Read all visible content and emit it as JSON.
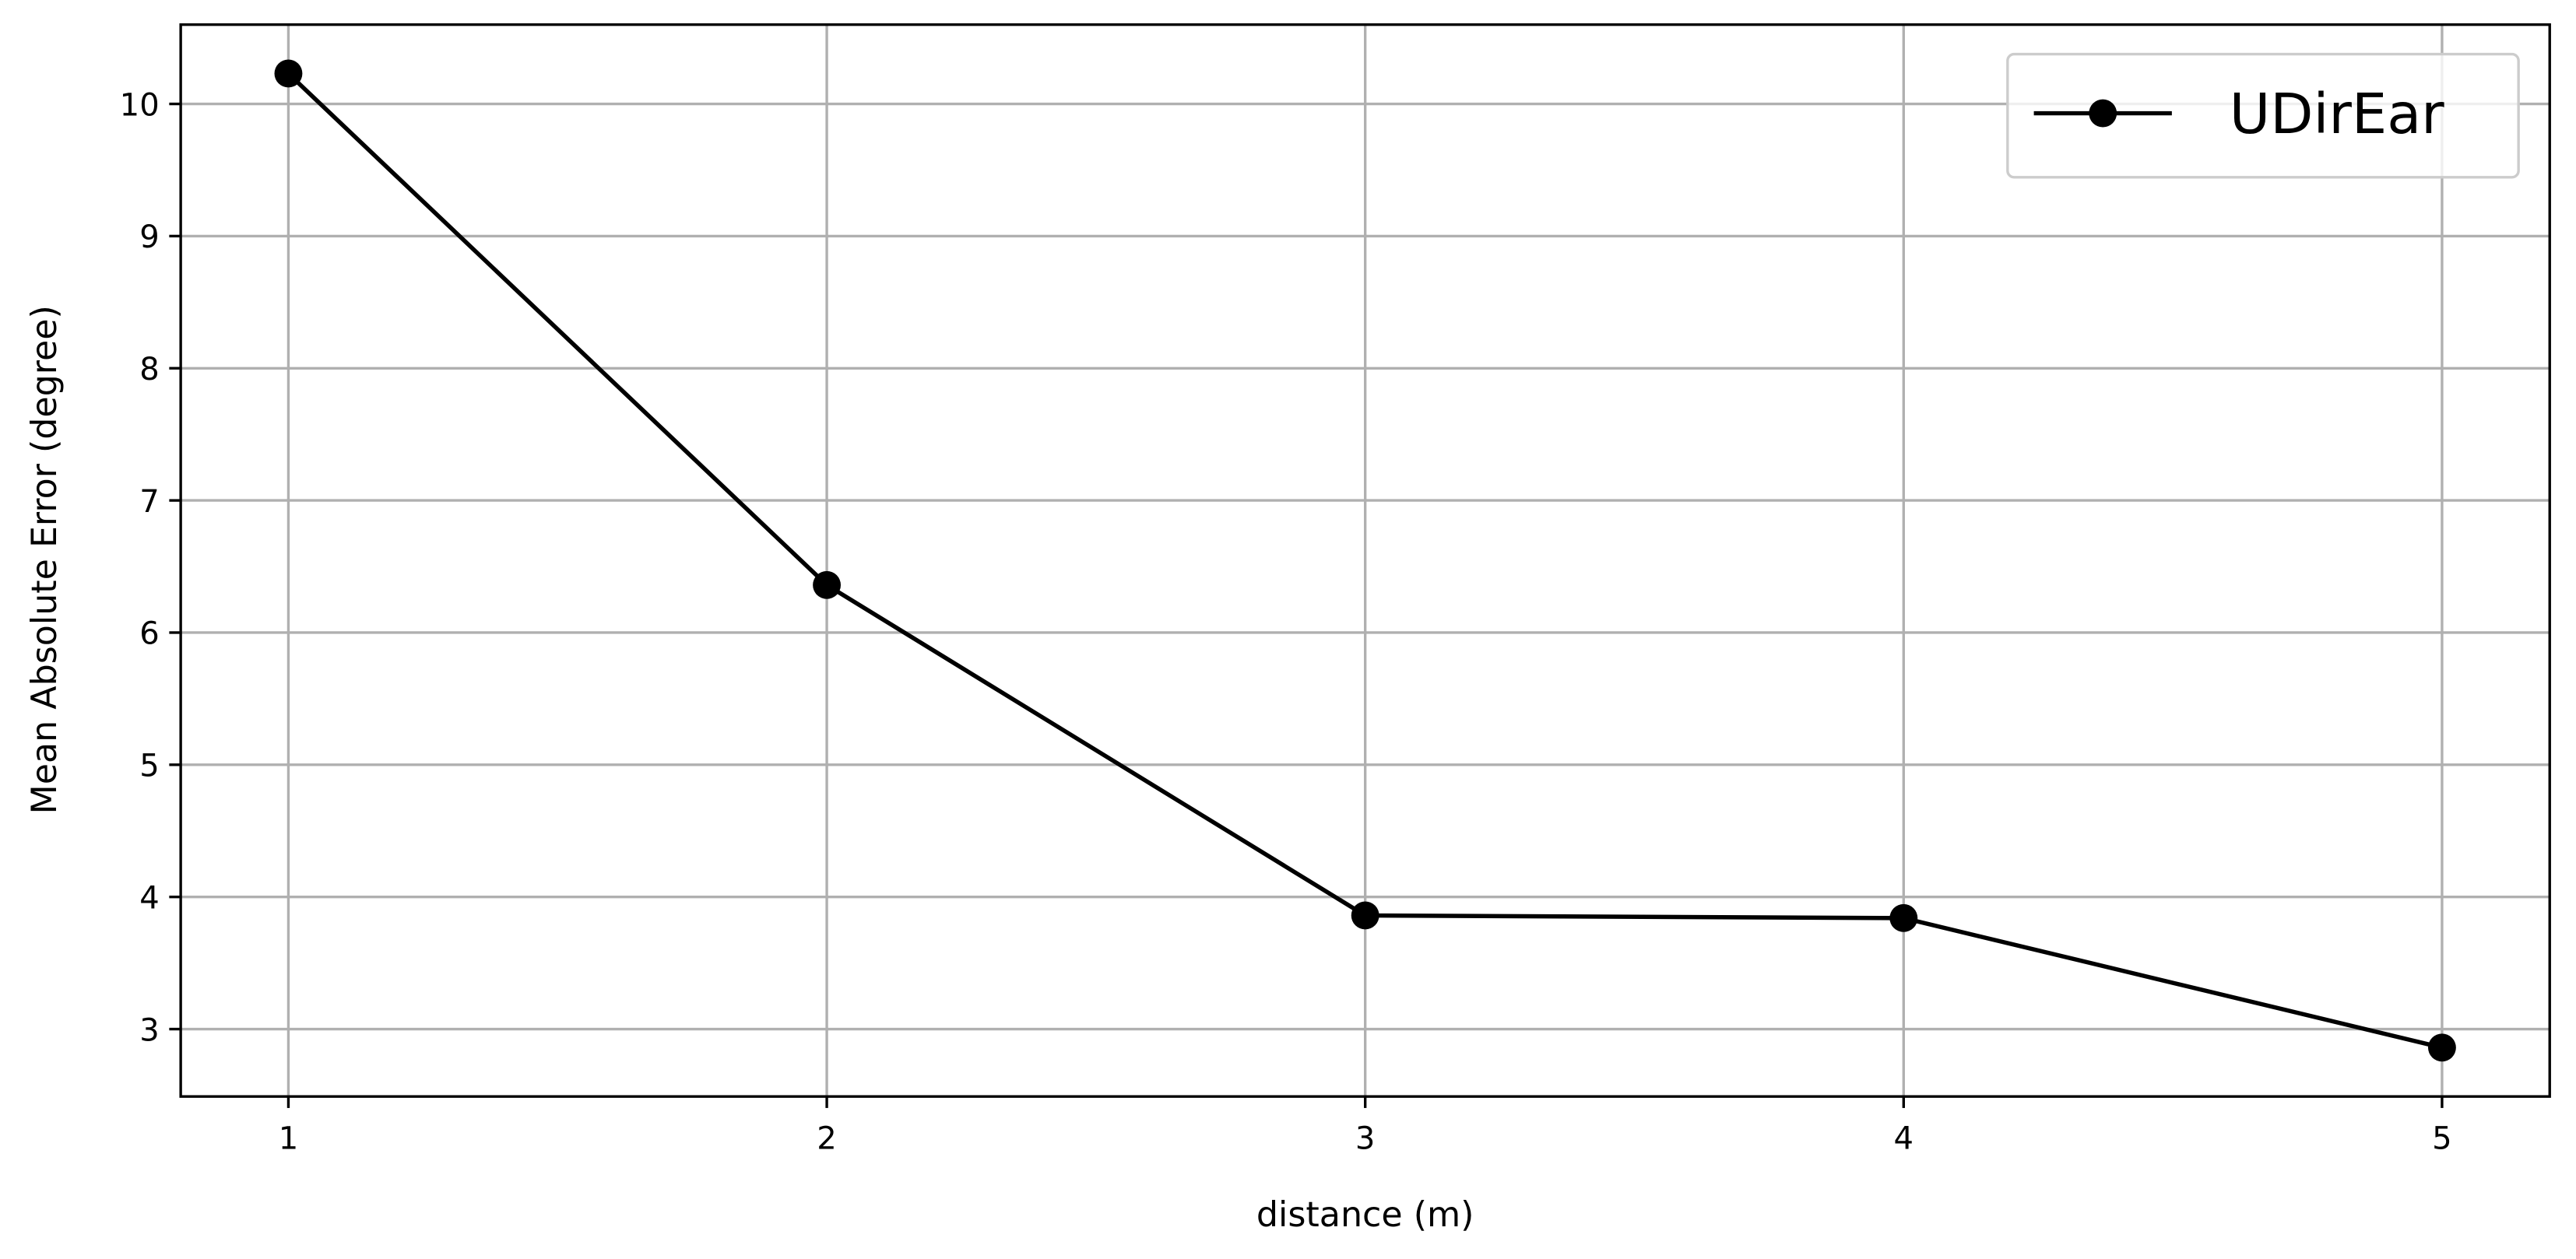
{
  "chart_data": {
    "type": "line",
    "xlabel": "distance (m)",
    "ylabel": "Mean Absolute Error (degree)",
    "x": [
      1,
      2,
      3,
      4,
      5
    ],
    "series": [
      {
        "name": "UDirEar",
        "color": "#000000",
        "values": [
          10.23,
          6.36,
          3.86,
          3.84,
          2.86
        ]
      }
    ],
    "xlim": [
      0.8,
      5.2
    ],
    "ylim": [
      2.49,
      10.6
    ],
    "xticks": [
      1,
      2,
      3,
      4,
      5
    ],
    "yticks": [
      3,
      4,
      5,
      6,
      7,
      8,
      9,
      10
    ],
    "grid": true,
    "legend": "upper right"
  }
}
